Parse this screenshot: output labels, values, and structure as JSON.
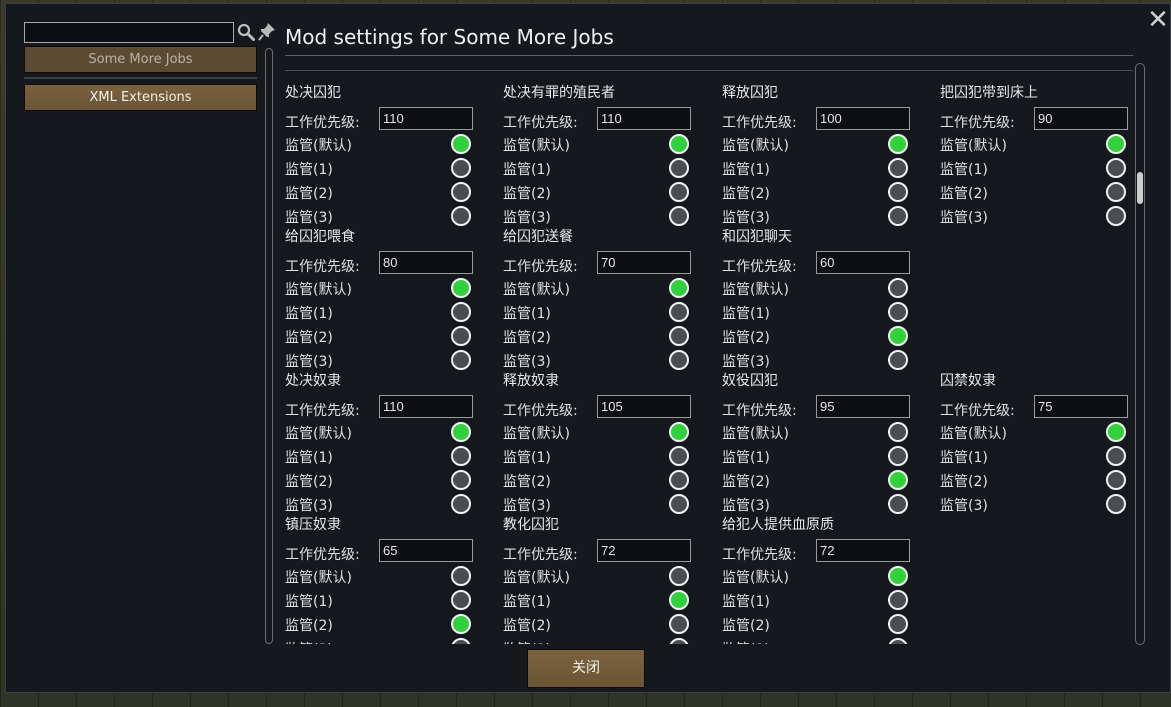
{
  "window": {
    "title": "Mod settings for Some More Jobs",
    "close_glyph": "✕"
  },
  "sidebar": {
    "search": {
      "value": "",
      "placeholder": ""
    },
    "mods": [
      {
        "label": "Some More Jobs",
        "selected": true
      },
      {
        "label": "XML Extensions",
        "selected": false
      }
    ]
  },
  "labels": {
    "priority": "工作优先级:",
    "sup_default": "监管(默认)",
    "sup_1": "监管(1)",
    "sup_2": "监管(2)",
    "sup_3": "监管(3)"
  },
  "settings": [
    {
      "title": "处决囚犯",
      "priority": "110",
      "selected": 0
    },
    {
      "title": "处决有罪的殖民者",
      "priority": "110",
      "selected": 0
    },
    {
      "title": "释放囚犯",
      "priority": "100",
      "selected": 0
    },
    {
      "title": "把囚犯带到床上",
      "priority": "90",
      "selected": 0
    },
    {
      "title": "给囚犯喂食",
      "priority": "80",
      "selected": 0
    },
    {
      "title": "给囚犯送餐",
      "priority": "70",
      "selected": 0
    },
    {
      "title": "和囚犯聊天",
      "priority": "60",
      "selected": 2
    },
    null,
    {
      "title": "处决奴隶",
      "priority": "110",
      "selected": 0
    },
    {
      "title": "释放奴隶",
      "priority": "105",
      "selected": 0
    },
    {
      "title": "奴役囚犯",
      "priority": "95",
      "selected": 2
    },
    {
      "title": "囚禁奴隶",
      "priority": "75",
      "selected": 0
    },
    {
      "title": "镇压奴隶",
      "priority": "65",
      "selected": 2
    },
    {
      "title": "教化囚犯",
      "priority": "72",
      "selected": 1
    },
    {
      "title": "给犯人提供血原质",
      "priority": "72",
      "selected": 0
    }
  ],
  "footer": {
    "close_label": "关闭"
  },
  "colors": {
    "radio_on": "#2fd23a",
    "radio_off": "#4a4d52",
    "button": "#6b5535"
  }
}
